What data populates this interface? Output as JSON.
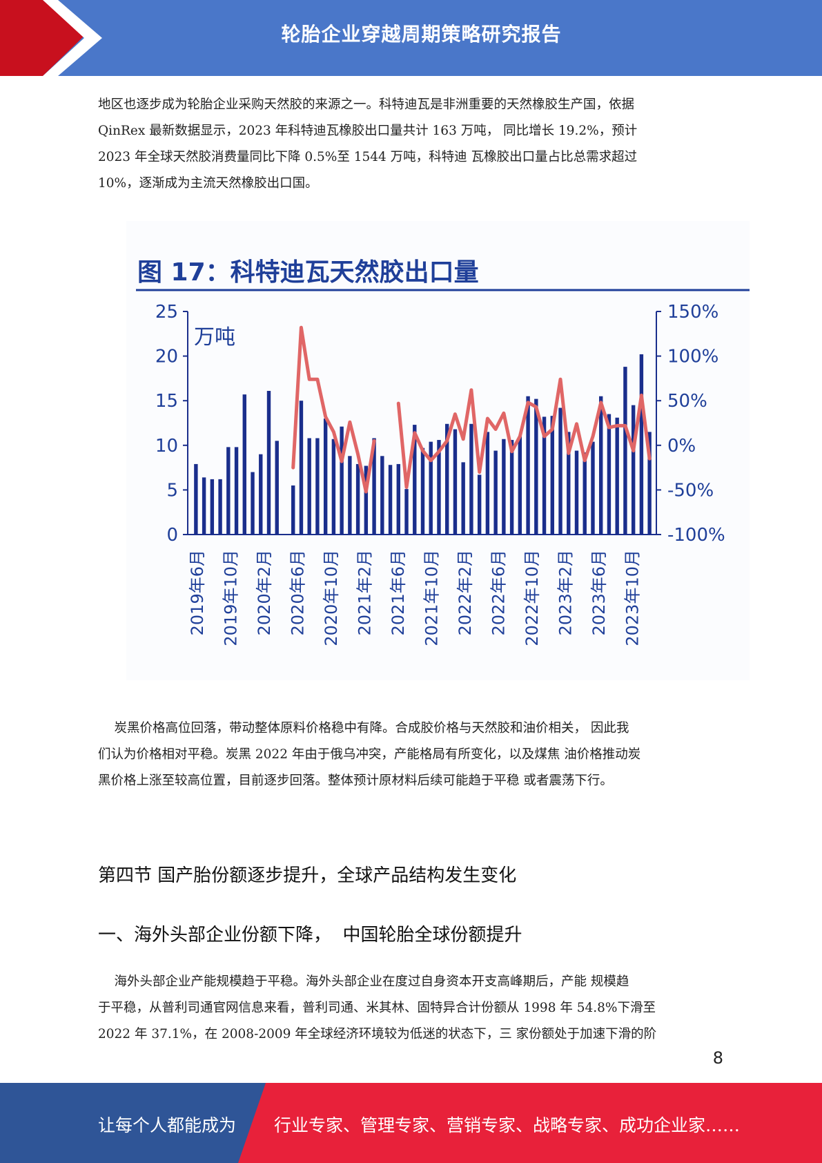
{
  "header": {
    "title": "轮胎企业穿越周期策略研究报告"
  },
  "paragraphs": {
    "intro": [
      "地区也逐步成为轮胎企业采购天然胶的来源之一。科特迪瓦是非洲重要的天然橡胶生产国，依据",
      "QinRex 最新数据显示，2023 年科特迪瓦橡胶出口量共计 163 万吨， 同比增长 19.2%，预计",
      "2023 年全球天然胶消费量同比下降 0.5%至 1544 万吨，科特迪 瓦橡胶出口量占比总需求超过",
      "10%，逐渐成为主流天然橡胶出口国。"
    ],
    "carbon": [
      "    炭黑价格高位回落，带动整体原料价格稳中有降。合成胶价格与天然胶和油价相关， 因此我",
      "们认为价格相对平稳。炭黑 2022 年由于俄乌冲突，产能格局有所变化，以及煤焦 油价格推动炭",
      "黑价格上涨至较高位置，目前逐步回落。整体预计原材料后续可能趋于平稳 或者震荡下行。"
    ],
    "overseas": [
      "    海外头部企业产能规模趋于平稳。海外头部企业在度过自身资本开支高峰期后，产能 规模趋",
      "于平稳，从普利司通官网信息来看，普利司通、米其林、固特异合计份额从 1998 年 54.8%下滑至",
      "2022 年 37.1%，在 2008-2009 年全球经济环境较为低迷的状态下，三 家份额处于加速下滑的阶"
    ]
  },
  "sections": {
    "section4": "第四节 国产胎份额逐步提升，全球产品结构发生变化",
    "sub1": "一、海外头部企业份额下降，  中国轮胎全球份额提升"
  },
  "page_number": "8",
  "footer": {
    "left": "让每个人都能成为",
    "right": "行业专家、管理专家、营销专家、战略专家、成功企业家……"
  },
  "colors": {
    "header_blue": "#4a77c9",
    "header_red": "#c8101e",
    "bar_navy": "#1a2e8c",
    "line_red": "#e06666",
    "footer_blue": "#2f5597",
    "footer_red": "#e8213a"
  },
  "chart_data": {
    "type": "bar",
    "title": "图 17：科特迪瓦天然胶出口量",
    "unit_label": "万吨",
    "ylim": [
      0,
      25
    ],
    "y_ticks": [
      "0",
      "5",
      "10",
      "15",
      "20",
      "25"
    ],
    "y2lim": [
      -100,
      150
    ],
    "y2_ticks": [
      "-100%",
      "-50%",
      "0%",
      "50%",
      "100%",
      "150%"
    ],
    "x_tick_labels": [
      "2019年6月",
      "2019年10月",
      "2020年2月",
      "2020年6月",
      "2020年10月",
      "2021年2月",
      "2021年6月",
      "2021年10月",
      "2022年2月",
      "2022年6月",
      "2022年10月",
      "2023年2月",
      "2023年6月",
      "2023年10月"
    ],
    "series": [
      {
        "type": "bar",
        "values": [
          7.9,
          6.4,
          6.2,
          6.2,
          9.8,
          9.8,
          15.7,
          7.0,
          9.0,
          16.1,
          10.5,
          null,
          5.5,
          15.0,
          10.8,
          10.8,
          13.0,
          10.7,
          12.1,
          8.8,
          7.9,
          7.7,
          10.8,
          8.8,
          7.8,
          7.9,
          5.1,
          12.3,
          9.7,
          10.4,
          10.6,
          12.4,
          11.8,
          8.1,
          12.4,
          6.7,
          11.5,
          9.4,
          10.7,
          10.6,
          11.0,
          15.5,
          15.2,
          13.2,
          13.3,
          14.2,
          11.5,
          9.4,
          9.2,
          10.4,
          15.5,
          13.5,
          13.1,
          18.8,
          14.5,
          20.2,
          11.5
        ]
      },
      {
        "type": "line",
        "values": [
          null,
          null,
          null,
          null,
          null,
          null,
          null,
          null,
          null,
          null,
          null,
          null,
          -25,
          132,
          74,
          74,
          32,
          15,
          -18,
          26,
          -10,
          -52,
          5,
          null,
          null,
          47,
          -47,
          14,
          -6,
          -17,
          -7,
          5,
          35,
          7,
          62,
          -30,
          30,
          18,
          36,
          -7,
          10,
          48,
          43,
          10,
          18,
          74,
          -9,
          24,
          -17,
          10,
          48,
          20,
          22,
          22,
          -6,
          56,
          -15
        ]
      }
    ]
  }
}
